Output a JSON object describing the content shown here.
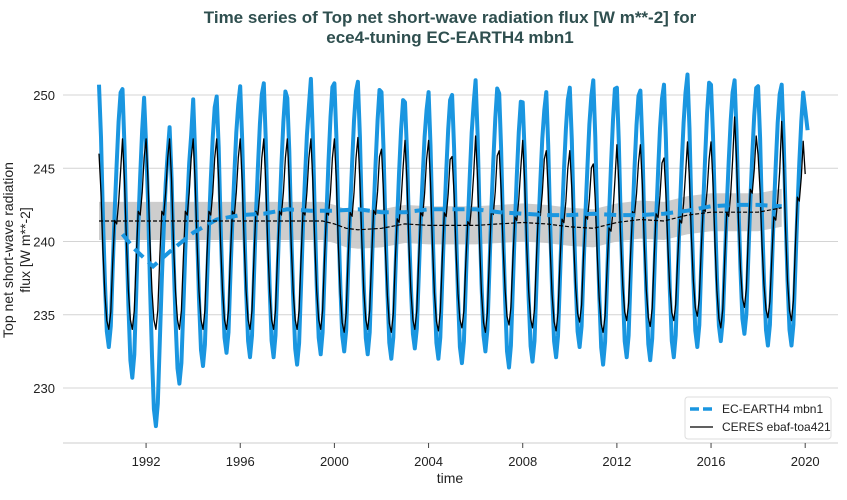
{
  "chart_data": {
    "type": "line",
    "title": "Time series of Top net short-wave radiation flux [W m**-2] for\nece4-tuning EC-EARTH4 mbn1",
    "title_lines": [
      "Time series of Top net short-wave radiation flux [W m**-2] for",
      "ece4-tuning EC-EARTH4 mbn1"
    ],
    "xlabel": "time",
    "ylabel": "Top net short-wave radiation flux [W m**-2]",
    "ylabel_lines": [
      "Top net short-wave radiation",
      "flux [W m**-2]"
    ],
    "xlim": [
      1989.5,
      2021.2
    ],
    "ylim": [
      226,
      252.5
    ],
    "xticks": [
      1992,
      1996,
      2000,
      2004,
      2008,
      2012,
      2016,
      2020
    ],
    "yticks": [
      230,
      235,
      240,
      245,
      250
    ],
    "grid": "horizontal",
    "legend_position": "bottom-right",
    "years": [
      1990,
      1991,
      1992,
      1993,
      1994,
      1995,
      1996,
      1997,
      1998,
      1999,
      2000,
      2001,
      2002,
      2003,
      2004,
      2005,
      2006,
      2007,
      2008,
      2009,
      2010,
      2011,
      2012,
      2013,
      2014,
      2015,
      2016,
      2017,
      2018,
      2019
    ],
    "series": [
      {
        "name": "EC-EARTH4 mbn1",
        "color": "#1a96e0",
        "style": "solid thick (monthly), dashed (annual mean)",
        "annual_max": [
          250.7,
          250.4,
          246.6,
          247.8,
          249.7,
          249.9,
          250.6,
          250.8,
          249.8,
          251.1,
          250.8,
          250.9,
          250.2,
          249.5,
          250.2,
          250.0,
          251.0,
          250.1,
          249.5,
          250.2,
          250.5,
          251.0,
          250.5,
          250.3,
          250.7,
          251.4,
          250.7,
          251.0,
          250.6,
          250.7
        ],
        "annual_min": [
          232.8,
          230.7,
          227.4,
          230.3,
          231.5,
          232.4,
          232.1,
          232.1,
          231.6,
          232.3,
          232.5,
          232.3,
          232.0,
          232.7,
          232.0,
          231.7,
          232.5,
          231.4,
          231.8,
          232.1,
          232.8,
          231.6,
          232.1,
          231.9,
          232.1,
          232.8,
          233.2,
          233.7,
          232.9,
          232.9
        ],
        "final_value": {
          "x": 2020.1,
          "y": 247.6
        },
        "annual_mean": {
          "x": [
            1991.0,
            1991.5,
            1992.3,
            1993.0,
            1994.0,
            1995.0,
            1996.0,
            1997.0,
            1998.0,
            1999.0,
            2000.0,
            2001.0,
            2002.0,
            2003.0,
            2004.0,
            2005.0,
            2006.0,
            2007.0,
            2008.0,
            2009.0,
            2010.0,
            2011.0,
            2012.0,
            2013.0,
            2014.0,
            2015.0,
            2016.0,
            2017.0,
            2018.0,
            2019.0
          ],
          "y": [
            240.5,
            239.5,
            238.3,
            239.3,
            240.6,
            241.5,
            241.8,
            241.9,
            242.2,
            242.1,
            242.1,
            242.2,
            242.0,
            242.0,
            242.2,
            242.2,
            242.2,
            242.0,
            241.9,
            241.8,
            241.8,
            241.9,
            241.8,
            241.8,
            241.9,
            242.1,
            242.4,
            242.5,
            242.5,
            242.4
          ]
        }
      },
      {
        "name": "CERES ebaf-toa421",
        "color": "#000000",
        "style": "solid thin (monthly), dashed (annual mean) with grey spread band",
        "annual_max": [
          246.0,
          247.0,
          247.0,
          247.0,
          247.0,
          247.0,
          247.0,
          247.0,
          247.0,
          247.0,
          247.0,
          247.1,
          246.3,
          246.9,
          246.9,
          245.8,
          247.2,
          246.2,
          246.9,
          246.2,
          246.2,
          245.3,
          246.6,
          246.6,
          245.7,
          246.8,
          246.8,
          248.5,
          245.9,
          248.2
        ],
        "annual_min": [
          234.0,
          234.0,
          234.0,
          234.0,
          234.0,
          234.0,
          234.0,
          234.0,
          234.0,
          234.0,
          233.8,
          234.0,
          233.8,
          234.0,
          233.9,
          234.1,
          233.8,
          234.3,
          234.1,
          233.9,
          234.5,
          233.8,
          234.6,
          234.2,
          234.6,
          234.9,
          234.1,
          235.5,
          234.8,
          234.6
        ],
        "final_value": {
          "x": 2020.0,
          "y": 244.6
        },
        "annual_mean": {
          "x": [
            1990.0,
            1999.5,
            2000.0,
            2000.5,
            2001.0,
            2002.0,
            2003.0,
            2004.0,
            2005.0,
            2006.0,
            2007.0,
            2008.0,
            2009.0,
            2010.0,
            2011.0,
            2012.0,
            2013.0,
            2014.0,
            2015.0,
            2016.0,
            2017.0,
            2018.0,
            2019.0
          ],
          "y": [
            241.4,
            241.4,
            241.2,
            240.9,
            240.8,
            240.9,
            241.2,
            241.1,
            241.1,
            241.1,
            241.2,
            241.3,
            241.2,
            241.0,
            240.9,
            241.3,
            241.5,
            241.4,
            241.8,
            242.0,
            242.0,
            242.0,
            242.3
          ]
        },
        "band_halfwidth": 1.3
      }
    ]
  }
}
